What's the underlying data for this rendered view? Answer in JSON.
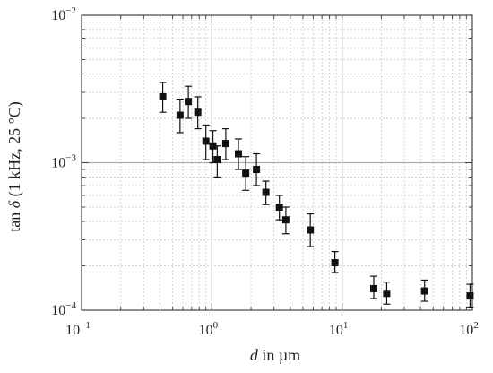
{
  "chart_data": {
    "type": "scatter",
    "xlabel_italic": "d",
    "xlabel_rest": " in µm",
    "ylabel_pre": "tan ",
    "ylabel_italic": "δ",
    "ylabel_post": " (1 kHz, 25 °C)",
    "xscale": "log",
    "yscale": "log",
    "xlim": [
      0.1,
      100
    ],
    "ylim": [
      0.0001,
      0.01
    ],
    "x_ticks": [
      {
        "value": 0.1,
        "base": "10",
        "exp": "−1"
      },
      {
        "value": 1,
        "base": "10",
        "exp": "0"
      },
      {
        "value": 10,
        "base": "10",
        "exp": "1"
      },
      {
        "value": 100,
        "base": "10",
        "exp": "2"
      }
    ],
    "y_ticks": [
      {
        "value": 0.0001,
        "base": "10",
        "exp": "−4"
      },
      {
        "value": 0.001,
        "base": "10",
        "exp": "−3"
      },
      {
        "value": 0.01,
        "base": "10",
        "exp": "−2"
      }
    ],
    "grid": true,
    "legend": "none",
    "points": [
      {
        "x": 0.42,
        "y": 0.0028,
        "err_low": 0.0022,
        "err_high": 0.0035
      },
      {
        "x": 0.57,
        "y": 0.0021,
        "err_low": 0.0016,
        "err_high": 0.0027
      },
      {
        "x": 0.66,
        "y": 0.0026,
        "err_low": 0.002,
        "err_high": 0.0033
      },
      {
        "x": 0.78,
        "y": 0.0022,
        "err_low": 0.0017,
        "err_high": 0.0028
      },
      {
        "x": 0.9,
        "y": 0.0014,
        "err_low": 0.00105,
        "err_high": 0.0018
      },
      {
        "x": 1.02,
        "y": 0.0013,
        "err_low": 0.001,
        "err_high": 0.00165
      },
      {
        "x": 1.1,
        "y": 0.00105,
        "err_low": 0.0008,
        "err_high": 0.0013
      },
      {
        "x": 1.28,
        "y": 0.00135,
        "err_low": 0.00105,
        "err_high": 0.0017
      },
      {
        "x": 1.6,
        "y": 0.00115,
        "err_low": 0.0009,
        "err_high": 0.00145
      },
      {
        "x": 1.82,
        "y": 0.00085,
        "err_low": 0.00065,
        "err_high": 0.0011
      },
      {
        "x": 2.2,
        "y": 0.0009,
        "err_low": 0.0007,
        "err_high": 0.00115
      },
      {
        "x": 2.6,
        "y": 0.00063,
        "err_low": 0.00052,
        "err_high": 0.00075
      },
      {
        "x": 3.3,
        "y": 0.0005,
        "err_low": 0.00041,
        "err_high": 0.0006
      },
      {
        "x": 3.7,
        "y": 0.00041,
        "err_low": 0.00033,
        "err_high": 0.0005
      },
      {
        "x": 5.7,
        "y": 0.00035,
        "err_low": 0.00027,
        "err_high": 0.00045
      },
      {
        "x": 8.8,
        "y": 0.00021,
        "err_low": 0.00018,
        "err_high": 0.00025
      },
      {
        "x": 17.5,
        "y": 0.00014,
        "err_low": 0.00012,
        "err_high": 0.00017
      },
      {
        "x": 22.0,
        "y": 0.00013,
        "err_low": 0.00011,
        "err_high": 0.000155
      },
      {
        "x": 43.0,
        "y": 0.000135,
        "err_low": 0.000115,
        "err_high": 0.00016
      },
      {
        "x": 96.0,
        "y": 0.000125,
        "err_low": 0.000105,
        "err_high": 0.00015
      }
    ]
  }
}
